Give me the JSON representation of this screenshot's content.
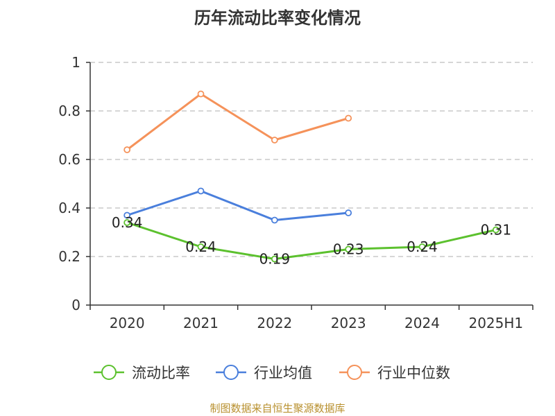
{
  "title": "历年流动比率变化情况",
  "source": "制图数据来自恒生聚源数据库",
  "colors": {
    "current_ratio": "#5cc12e",
    "industry_mean": "#4a7fdc",
    "industry_median": "#f5925a",
    "grid": "#c8c8c8",
    "axis": "#333333"
  },
  "chart_data": {
    "type": "line",
    "title": "历年流动比率变化情况",
    "categories": [
      "2020",
      "2021",
      "2022",
      "2023",
      "2024",
      "2025H1"
    ],
    "ylim": [
      0,
      1
    ],
    "yticks": [
      0,
      0.2,
      0.4,
      0.6,
      0.8,
      1
    ],
    "ytick_labels": [
      "0",
      "0.2",
      "0.4",
      "0.6",
      "0.8",
      "1"
    ],
    "grid": true,
    "legend_position": "bottom",
    "series": [
      {
        "name": "流动比率",
        "color_key": "current_ratio",
        "values": [
          0.34,
          0.24,
          0.19,
          0.23,
          0.24,
          0.31
        ],
        "labels": [
          "0.34",
          "0.24",
          "0.19",
          "0.23",
          "0.24",
          "0.31"
        ]
      },
      {
        "name": "行业均值",
        "color_key": "industry_mean",
        "values": [
          0.37,
          0.47,
          0.35,
          0.38,
          null,
          null
        ]
      },
      {
        "name": "行业中位数",
        "color_key": "industry_median",
        "values": [
          0.64,
          0.87,
          0.68,
          0.77,
          null,
          null
        ]
      }
    ]
  }
}
